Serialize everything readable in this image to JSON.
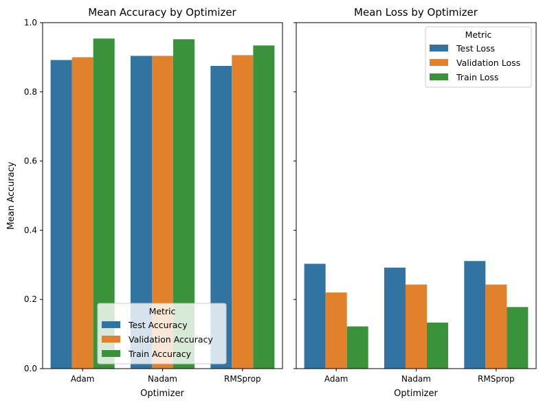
{
  "chart_data": [
    {
      "type": "bar",
      "title": "Mean Accuracy by Optimizer",
      "xlabel": "Optimizer",
      "ylabel": "Mean Accuracy",
      "categories": [
        "Adam",
        "Nadam",
        "RMSprop"
      ],
      "ylim": [
        0,
        1.0
      ],
      "yticks": [
        "0.0",
        "0.2",
        "0.4",
        "0.6",
        "0.8",
        "1.0"
      ],
      "grid": false,
      "series": [
        {
          "name": "Test Accuracy",
          "values": [
            0.892,
            0.904,
            0.875
          ],
          "color": "#3274a1"
        },
        {
          "name": "Validation Accuracy",
          "values": [
            0.9,
            0.904,
            0.906
          ],
          "color": "#e1812c"
        },
        {
          "name": "Train Accuracy",
          "values": [
            0.954,
            0.952,
            0.934
          ],
          "color": "#3a923a"
        }
      ],
      "legend": {
        "title": "Metric",
        "position": "lower-center"
      }
    },
    {
      "type": "bar",
      "title": "Mean Loss by Optimizer",
      "xlabel": "Optimizer",
      "ylabel": "",
      "categories": [
        "Adam",
        "Nadam",
        "RMSprop"
      ],
      "ylim": [
        0,
        1.0
      ],
      "grid": false,
      "series": [
        {
          "name": "Test Loss",
          "values": [
            0.303,
            0.292,
            0.311
          ],
          "color": "#3274a1"
        },
        {
          "name": "Validation Loss",
          "values": [
            0.22,
            0.243,
            0.243
          ],
          "color": "#e1812c"
        },
        {
          "name": "Train Loss",
          "values": [
            0.122,
            0.133,
            0.178
          ],
          "color": "#3a923a"
        }
      ],
      "legend": {
        "title": "Metric",
        "position": "upper-right"
      }
    }
  ]
}
